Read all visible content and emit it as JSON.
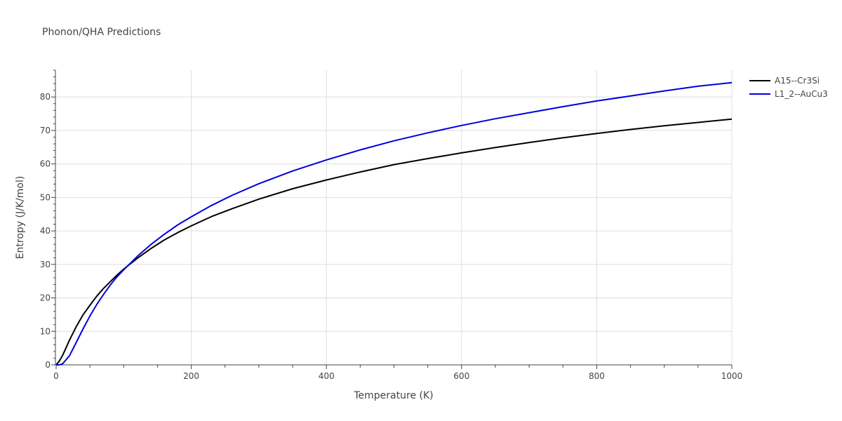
{
  "chart_data": {
    "type": "line",
    "title": "Phonon/QHA Predictions",
    "xlabel": "Temperature (K)",
    "ylabel": "Entropy (J/K/mol)",
    "xlim": [
      0,
      1000
    ],
    "ylim": [
      0,
      88
    ],
    "xticks": [
      0,
      200,
      400,
      600,
      800,
      1000
    ],
    "yticks": [
      0,
      10,
      20,
      30,
      40,
      50,
      60,
      70,
      80
    ],
    "grid": true,
    "legend_position": "top-right",
    "series": [
      {
        "name": "A15--Cr3Si",
        "color": "#000000",
        "x": [
          0,
          5,
          10,
          20,
          30,
          40,
          50,
          60,
          70,
          80,
          90,
          100,
          120,
          140,
          160,
          180,
          200,
          230,
          260,
          300,
          350,
          400,
          450,
          500,
          550,
          600,
          650,
          700,
          750,
          800,
          850,
          900,
          950,
          1000
        ],
        "y": [
          0,
          1.2,
          3.0,
          7.5,
          11.5,
          15.0,
          17.8,
          20.5,
          22.8,
          24.8,
          26.8,
          28.6,
          31.8,
          34.7,
          37.3,
          39.5,
          41.5,
          44.3,
          46.6,
          49.5,
          52.6,
          55.2,
          57.6,
          59.8,
          61.6,
          63.3,
          64.9,
          66.4,
          67.8,
          69.1,
          70.3,
          71.4,
          72.4,
          73.4
        ]
      },
      {
        "name": "L1_2--AuCu3",
        "color": "#0000dd",
        "x": [
          0,
          5,
          10,
          20,
          30,
          40,
          50,
          60,
          70,
          80,
          90,
          100,
          120,
          140,
          160,
          180,
          200,
          230,
          260,
          300,
          350,
          400,
          450,
          500,
          550,
          600,
          650,
          700,
          750,
          800,
          850,
          900,
          950,
          1000
        ],
        "y": [
          0,
          0,
          0.4,
          2.8,
          6.8,
          10.8,
          14.6,
          18.0,
          21.0,
          23.8,
          26.3,
          28.4,
          32.4,
          35.9,
          39.0,
          41.8,
          44.2,
          47.6,
          50.6,
          54.1,
          57.9,
          61.2,
          64.2,
          66.9,
          69.3,
          71.5,
          73.5,
          75.3,
          77.1,
          78.8,
          80.3,
          81.8,
          83.2,
          84.3
        ]
      }
    ]
  }
}
